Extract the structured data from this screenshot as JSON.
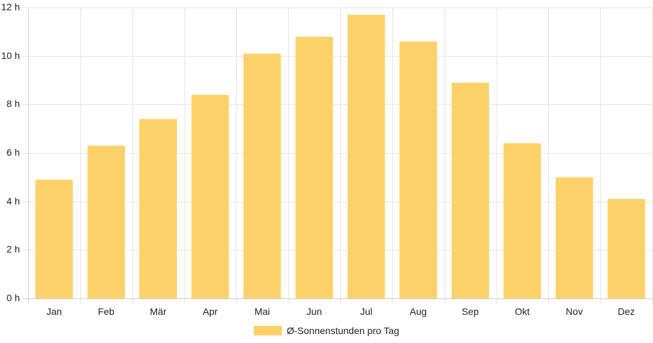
{
  "chart_data": {
    "type": "bar",
    "categories": [
      "Jan",
      "Feb",
      "Mär",
      "Apr",
      "Mai",
      "Jun",
      "Jul",
      "Aug",
      "Sep",
      "Okt",
      "Nov",
      "Dez"
    ],
    "series": [
      {
        "name": "Ø-Sonnenstunden pro Tag",
        "values": [
          4.9,
          6.3,
          7.4,
          8.4,
          10.1,
          10.8,
          11.7,
          10.6,
          8.9,
          6.4,
          5.0,
          4.1
        ]
      }
    ],
    "ylim": [
      0,
      12
    ],
    "yticks": [
      0,
      2,
      4,
      6,
      8,
      10,
      12
    ],
    "ytick_labels": [
      "0 h",
      "2 h",
      "4 h",
      "6 h",
      "8 h",
      "10 h",
      "12 h"
    ],
    "grid": true,
    "legend_position": "bottom",
    "bar_color": "#fdd16a"
  }
}
